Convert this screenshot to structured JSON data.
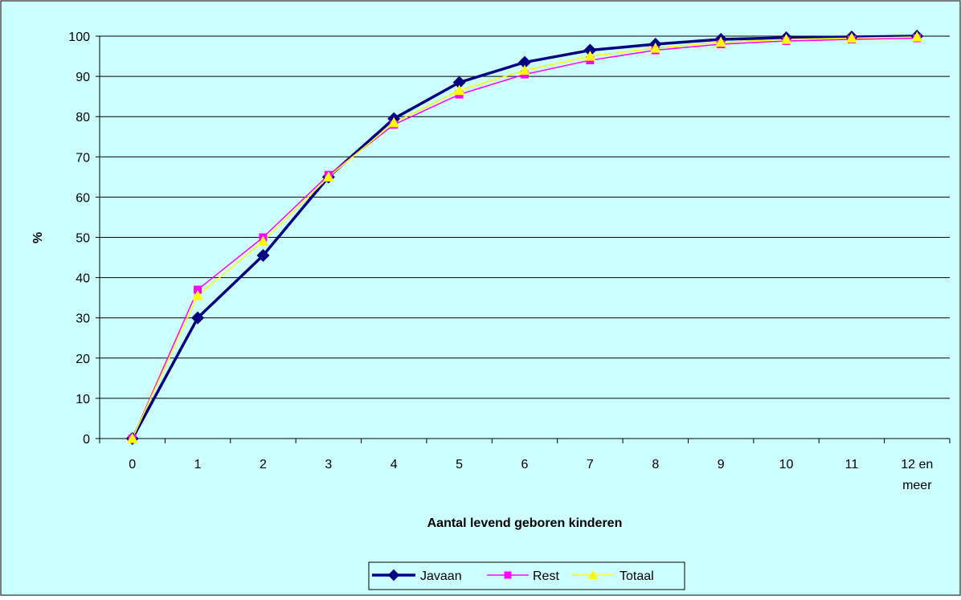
{
  "chart_data": {
    "type": "line",
    "title": "",
    "xlabel": "Aantal levend geboren kinderen",
    "ylabel": "%",
    "categories": [
      "0",
      "1",
      "2",
      "3",
      "4",
      "5",
      "6",
      "7",
      "8",
      "9",
      "10",
      "11",
      "12 en meer"
    ],
    "ylim": [
      0,
      100
    ],
    "yticks": [
      "0",
      "10",
      "20",
      "30",
      "40",
      "50",
      "60",
      "70",
      "80",
      "90",
      "100"
    ],
    "grid": true,
    "legend_position": "bottom",
    "plot_background": "#ccffff",
    "series": [
      {
        "name": "Javaan",
        "color": "#000080",
        "marker": "diamond",
        "values": [
          0,
          30,
          45.5,
          65,
          79.5,
          88.5,
          93.5,
          96.5,
          98,
          99.2,
          99.6,
          99.8,
          100
        ]
      },
      {
        "name": "Rest",
        "color": "#ff00ff",
        "marker": "square",
        "values": [
          0,
          37,
          50,
          65.5,
          78,
          85.5,
          90.5,
          94,
          96.5,
          98,
          98.8,
          99.2,
          99.5
        ]
      },
      {
        "name": "Totaal",
        "color": "#ffff00",
        "marker": "triangle",
        "values": [
          0,
          35.5,
          49,
          65,
          78.5,
          86.5,
          91.5,
          95,
          97,
          98.5,
          99.2,
          99.5,
          99.8
        ]
      }
    ]
  }
}
